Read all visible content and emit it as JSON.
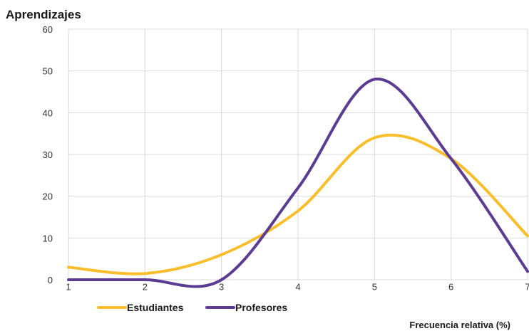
{
  "chart_data": {
    "type": "line",
    "title": "Aprendizajes",
    "xlabel": "Frecuencia relativa (%)",
    "ylabel": "",
    "x": [
      1,
      2,
      3,
      4,
      5,
      6,
      7
    ],
    "xlim": [
      1,
      7
    ],
    "ylim": [
      0,
      60
    ],
    "yticks": [
      0,
      10,
      20,
      30,
      40,
      50,
      60
    ],
    "grid": true,
    "legend": "bottom-left",
    "series": [
      {
        "name": "Estudiantes",
        "color": "#F9BE2B",
        "values": [
          3,
          1.5,
          6,
          16.5,
          34,
          29,
          10.5
        ]
      },
      {
        "name": "Profesores",
        "color": "#5C3C92",
        "values": [
          0,
          0,
          0,
          22,
          48,
          29,
          2
        ]
      }
    ]
  }
}
